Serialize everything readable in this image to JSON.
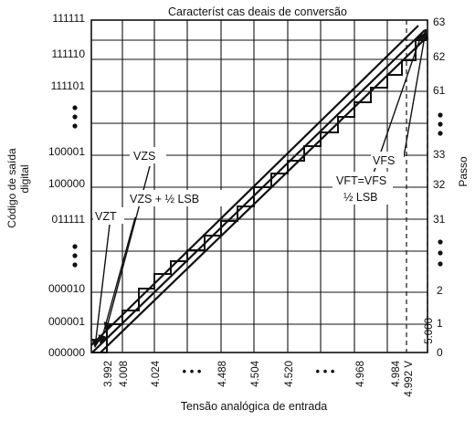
{
  "title": "Característ cas  deais de conversão",
  "y_axis_label_line1": "Código de saída",
  "y_axis_label_line2": "digital",
  "x_axis_label": "Tensão analógica de entrada",
  "right_axis_label": "Passo",
  "codes": [
    "000000",
    "000001",
    "000010",
    "011111",
    "100000",
    "100001",
    "111101",
    "111110",
    "111111"
  ],
  "steps": [
    "0",
    "1",
    "2",
    "31",
    "32",
    "33",
    "61",
    "62",
    "63"
  ],
  "voltages": [
    "3.992",
    "4.008",
    "4.024",
    "4.488",
    "4.504",
    "4.520",
    "4.968",
    "4.984",
    "4.992 V",
    "5.000"
  ],
  "ellipsis": "• • •",
  "annotations": {
    "vzs": "VZS",
    "vzs_half": "VZS + ½ LSB",
    "vzt": "VZT",
    "vft_line1": "VFT=VFS",
    "vft_line2": "½ LSB",
    "vfs": "VFS"
  }
}
